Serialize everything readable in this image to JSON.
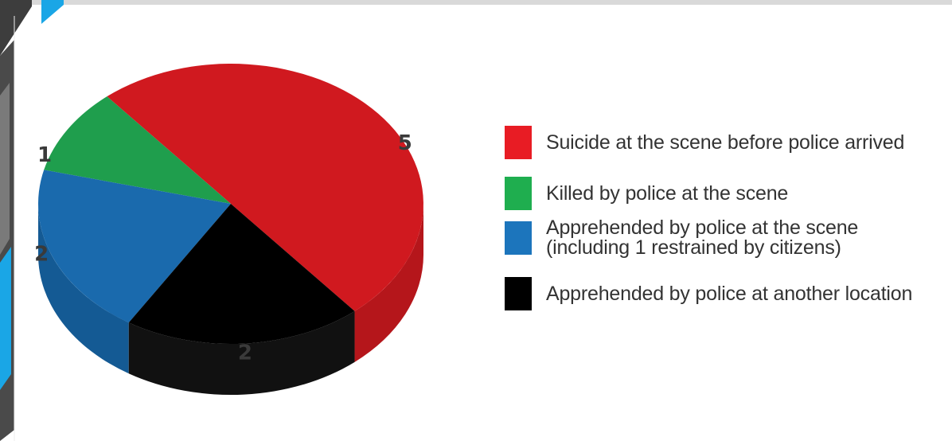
{
  "chart_data": {
    "type": "pie",
    "title": "",
    "categories": [
      "Suicide at the scene before police arrived",
      "Killed by police at the scene",
      "Apprehended by police at the scene\n(including 1 restrained by citizens)",
      "Apprehended by police at another location"
    ],
    "values": [
      5,
      1,
      2,
      2
    ],
    "value_labels": [
      "5",
      "1",
      "2",
      "2"
    ],
    "colors": [
      "#d0191f",
      "#1f9e4d",
      "#1a6aad",
      "#000000"
    ],
    "side_colors": [
      "#b5161b",
      "#178a41",
      "#145a94",
      "#111111"
    ],
    "legend_colors": [
      "#e81c24",
      "#1fae4f",
      "#1c75bc",
      "#000000"
    ],
    "legend_position": "right",
    "style": "3d"
  },
  "decor": {
    "accent_colors": [
      "#1aa6e6",
      "#3a3a3a",
      "#5a5a5a"
    ]
  }
}
